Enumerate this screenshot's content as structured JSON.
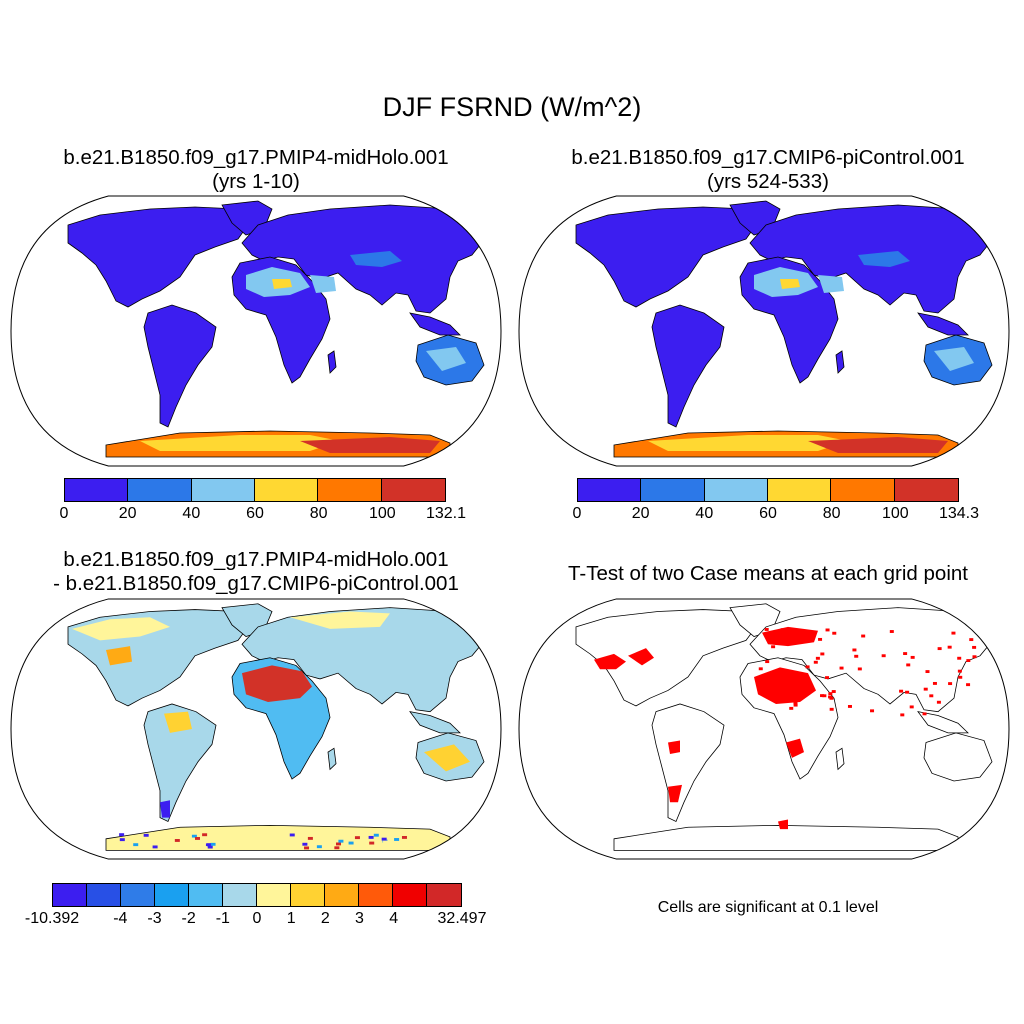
{
  "figure": {
    "title": "DJF FSRND (W/m^2)"
  },
  "panels": {
    "top_left": {
      "title_line1": "b.e21.B1850.f09_g17.PMIP4-midHolo.001",
      "title_line2": "(yrs 1-10)",
      "colorbar": {
        "colors": [
          "#3c1ef0",
          "#2c78e8",
          "#82c8f0",
          "#ffd832",
          "#ff7800",
          "#d23228"
        ],
        "labels": [
          "0",
          "20",
          "40",
          "60",
          "80",
          "100",
          "132.1"
        ]
      }
    },
    "top_right": {
      "title_line1": "b.e21.B1850.f09_g17.CMIP6-piControl.001",
      "title_line2": "(yrs 524-533)",
      "colorbar": {
        "colors": [
          "#3c1ef0",
          "#2c78e8",
          "#82c8f0",
          "#ffd832",
          "#ff7800",
          "#d23228"
        ],
        "labels": [
          "0",
          "20",
          "40",
          "60",
          "80",
          "100",
          "134.3"
        ]
      }
    },
    "bottom_left": {
      "title_line1": "b.e21.B1850.f09_g17.PMIP4-midHolo.001",
      "title_line2": "- b.e21.B1850.f09_g17.CMIP6-piControl.001",
      "colorbar": {
        "colors": [
          "#3c1ef0",
          "#2850e6",
          "#2f7ce8",
          "#1aa0f0",
          "#50bcf2",
          "#a8d8ea",
          "#fff59a",
          "#ffd232",
          "#ffaa14",
          "#ff5a0a",
          "#f00000",
          "#d22828"
        ],
        "labels": [
          "-10.392",
          "-4",
          "-3",
          "-2",
          "-1",
          "0",
          "1",
          "2",
          "3",
          "4",
          "32.497"
        ],
        "label_boundaries": [
          0,
          2,
          3,
          4,
          5,
          6,
          7,
          8,
          9,
          10,
          12
        ]
      }
    },
    "bottom_right": {
      "title": "T-Test of two Case means at each grid point",
      "note": "Cells are significant at 0.1 level",
      "significant_color": "#ff0000"
    }
  }
}
